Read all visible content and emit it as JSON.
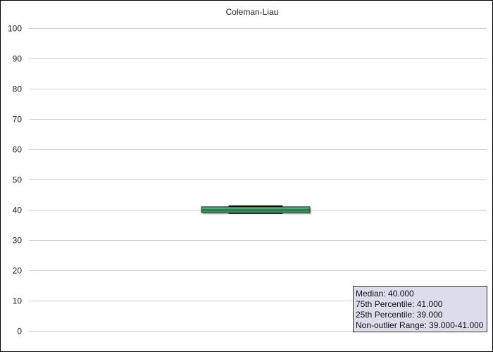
{
  "colors": {
    "box_fill": "#3c8a5e",
    "box_fill_light": "#62b386",
    "box_stroke": "#1e4a30",
    "whisker": "#000000",
    "grid": "#d0d0d0",
    "tooltip_bg": "#dcdcec"
  },
  "chart_data": {
    "type": "box",
    "title": "Coleman-Liau",
    "xlabel": "",
    "ylabel": "",
    "ylim": [
      0,
      100
    ],
    "yticks": [
      "0",
      "10",
      "20",
      "30",
      "40",
      "50",
      "60",
      "70",
      "80",
      "90",
      "100"
    ],
    "grid": true,
    "legend": "none",
    "series": [
      {
        "median": 40,
        "q1": 39,
        "q3": 41,
        "whisker_low": 39,
        "whisker_high": 41
      }
    ]
  },
  "tooltip": {
    "lines": [
      "Median: 40.000",
      "75th Percentile: 41.000",
      "25th Percentile: 39.000",
      "Non-outlier Range: 39.000-41.000"
    ]
  }
}
